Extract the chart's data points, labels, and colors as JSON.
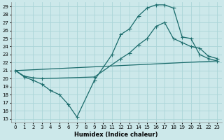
{
  "xlabel": "Humidex (Indice chaleur)",
  "background_color": "#cce8ea",
  "grid_color": "#aad4d8",
  "line_color": "#1a6b6b",
  "xlim": [
    -0.5,
    23.5
  ],
  "ylim": [
    14.5,
    29.5
  ],
  "xticks": [
    0,
    1,
    2,
    3,
    4,
    5,
    6,
    7,
    8,
    9,
    10,
    11,
    12,
    13,
    14,
    15,
    16,
    17,
    18,
    19,
    20,
    21,
    22,
    23
  ],
  "yticks": [
    15,
    16,
    17,
    18,
    19,
    20,
    21,
    22,
    23,
    24,
    25,
    26,
    27,
    28,
    29
  ],
  "curve1_x": [
    0,
    1,
    2,
    3,
    4,
    5,
    6,
    7,
    9,
    11,
    12,
    13,
    14,
    15,
    16,
    17,
    18,
    19,
    20,
    21,
    22,
    23
  ],
  "curve1_y": [
    21.0,
    20.2,
    19.8,
    19.3,
    18.5,
    18.0,
    16.8,
    15.2,
    19.8,
    23.0,
    25.5,
    26.2,
    27.8,
    28.8,
    29.2,
    29.2,
    28.8,
    25.2,
    25.0,
    23.0,
    22.5,
    22.2
  ],
  "curve2_x": [
    0,
    1,
    2,
    3,
    9,
    12,
    13,
    14,
    15,
    16,
    17,
    18,
    19,
    20,
    21,
    22,
    23
  ],
  "curve2_y": [
    21.0,
    20.3,
    20.1,
    20.0,
    20.2,
    22.5,
    23.2,
    24.2,
    25.0,
    26.5,
    27.0,
    25.0,
    24.5,
    24.0,
    23.8,
    22.8,
    22.5
  ],
  "curve3_x": [
    0,
    23
  ],
  "curve3_y": [
    21.0,
    22.2
  ]
}
